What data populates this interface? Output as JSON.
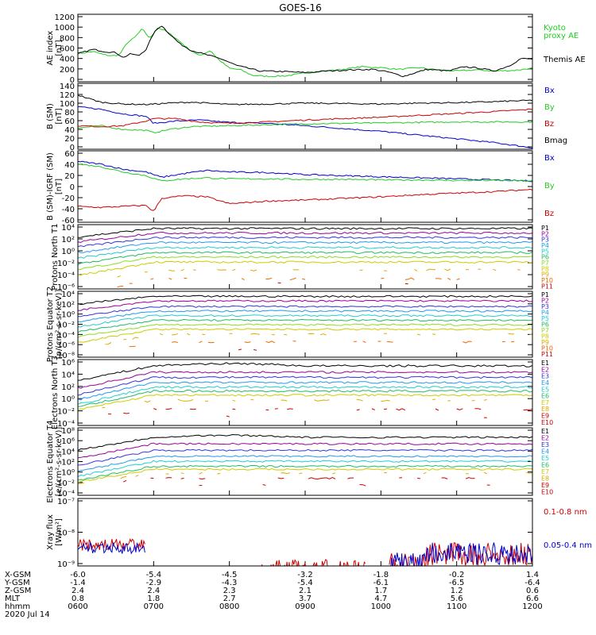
{
  "title": "GOES-16",
  "colors": {
    "black": "#000000",
    "blue": "#0000cc",
    "green": "#22cc22",
    "red": "#cc0000",
    "P": [
      "#000000",
      "#990099",
      "#3333dd",
      "#2299ee",
      "#22cccc",
      "#22bb66",
      "#88dd22",
      "#cccc00",
      "#ddaa00",
      "#ee6600",
      "#cc0000"
    ],
    "E": [
      "#000000",
      "#990099",
      "#3333dd",
      "#2299ee",
      "#22cccc",
      "#22bb66",
      "#cccc00",
      "#ddaa00",
      "#cc0000",
      "#cc0000"
    ]
  },
  "chart_data": [
    {
      "type": "line",
      "ylabel": "AE index [nT]",
      "yticks": [
        "1200",
        "1000",
        "800",
        "600",
        "400",
        "200",
        "0"
      ],
      "ylim": [
        0,
        1250
      ],
      "series": [
        {
          "name": "Kyoto proxy AE",
          "color": "green",
          "x": [
            0,
            0.2,
            0.35,
            0.45,
            0.55,
            0.65,
            0.75,
            0.85,
            0.95,
            1.05,
            1.15,
            1.3,
            1.45,
            1.6,
            1.75,
            1.85,
            2,
            2.15,
            2.3,
            2.5,
            2.75,
            3,
            3.25,
            3.5,
            3.75,
            4,
            4.25,
            4.5,
            4.75,
            5,
            5.25,
            5.5,
            5.75,
            6
          ],
          "y": [
            520,
            560,
            500,
            480,
            500,
            720,
            820,
            980,
            800,
            1000,
            950,
            800,
            620,
            480,
            580,
            420,
            250,
            220,
            120,
            100,
            110,
            160,
            200,
            230,
            280,
            260,
            230,
            260,
            220,
            200,
            220,
            200,
            210,
            250
          ]
        },
        {
          "name": "Themis AE",
          "color": "black",
          "x": [
            0,
            0.2,
            0.35,
            0.5,
            0.6,
            0.7,
            0.8,
            0.9,
            1,
            1.1,
            1.2,
            1.35,
            1.5,
            1.7,
            1.9,
            2.1,
            2.4,
            2.7,
            3,
            3.3,
            3.6,
            3.9,
            4.1,
            4.3,
            4.6,
            4.9,
            5.1,
            5.3,
            5.5,
            5.7,
            5.85,
            6
          ],
          "y": [
            520,
            600,
            560,
            540,
            450,
            520,
            480,
            600,
            900,
            1050,
            900,
            700,
            580,
            500,
            420,
            300,
            200,
            190,
            170,
            200,
            220,
            230,
            180,
            100,
            230,
            200,
            280,
            250,
            200,
            300,
            430,
            420
          ]
        }
      ]
    },
    {
      "type": "line",
      "ylabel": "B (SM) [nT]",
      "yticks": [
        "140",
        "120",
        "100",
        "80",
        "60",
        "40",
        "20",
        "0"
      ],
      "ylim": [
        0,
        140
      ],
      "series": [
        {
          "name": "Bx",
          "color": "blue",
          "x": [
            0,
            0.3,
            0.6,
            0.9,
            1,
            1.3,
            1.6,
            2,
            2.5,
            3,
            3.5,
            4,
            4.5,
            5,
            5.5,
            6
          ],
          "y": [
            90,
            85,
            75,
            70,
            55,
            60,
            62,
            57,
            55,
            50,
            44,
            38,
            30,
            22,
            14,
            3
          ]
        },
        {
          "name": "By",
          "color": "green",
          "x": [
            0,
            0.3,
            0.6,
            0.9,
            1,
            1.2,
            1.5,
            2,
            2.5,
            3,
            3.5,
            4,
            4.5,
            5,
            5.5,
            6
          ],
          "y": [
            45,
            50,
            42,
            40,
            35,
            42,
            48,
            50,
            52,
            54,
            55,
            56,
            57,
            58,
            58,
            58
          ]
        },
        {
          "name": "Bz",
          "color": "red",
          "x": [
            0,
            0.3,
            0.6,
            0.9,
            1,
            1.3,
            1.6,
            2,
            2.5,
            3,
            3.5,
            4,
            4.5,
            5,
            5.5,
            6
          ],
          "y": [
            50,
            48,
            50,
            60,
            65,
            65,
            58,
            55,
            58,
            62,
            65,
            68,
            72,
            76,
            80,
            85
          ]
        },
        {
          "name": "Bmag",
          "color": "black",
          "x": [
            0,
            0.3,
            0.6,
            0.9,
            1.2,
            1.5,
            2,
            2.5,
            3,
            3.5,
            4,
            4.5,
            5,
            5.5,
            6
          ],
          "y": [
            115,
            100,
            96,
            95,
            98,
            100,
            95,
            96,
            98,
            97,
            96,
            98,
            99,
            101,
            104
          ]
        }
      ]
    },
    {
      "type": "line",
      "ylabel": "B (SM)-IGRF (SM) [nT]",
      "yticks": [
        "60",
        "40",
        "20",
        "0",
        "-20",
        "-40",
        "-60"
      ],
      "ylim": [
        -70,
        65
      ],
      "series": [
        {
          "name": "Bx",
          "color": "blue",
          "x": [
            0,
            0.3,
            0.6,
            0.9,
            1.1,
            1.4,
            1.7,
            2,
            2.5,
            3,
            3.5,
            4,
            4.5,
            5,
            5.5,
            6
          ],
          "y": [
            45,
            40,
            30,
            25,
            15,
            22,
            28,
            25,
            24,
            20,
            18,
            16,
            14,
            12,
            10,
            8
          ]
        },
        {
          "name": "By",
          "color": "green",
          "x": [
            0,
            0.3,
            0.6,
            0.9,
            1.1,
            1.4,
            1.7,
            2,
            2.5,
            3,
            3.5,
            4,
            4.5,
            5,
            5.5,
            6
          ],
          "y": [
            40,
            35,
            25,
            18,
            8,
            12,
            14,
            12,
            12,
            11,
            11,
            10,
            10,
            9,
            9,
            8
          ]
        },
        {
          "name": "Bz",
          "color": "red",
          "x": [
            0,
            0.3,
            0.6,
            0.9,
            1,
            1.1,
            1.4,
            1.7,
            2,
            2.5,
            3,
            3.5,
            4,
            4.5,
            5,
            5.5,
            6
          ],
          "y": [
            -40,
            -42,
            -40,
            -38,
            -50,
            -25,
            -20,
            -22,
            -35,
            -30,
            -28,
            -25,
            -22,
            -18,
            -15,
            -12,
            -8
          ]
        }
      ]
    },
    {
      "type": "line",
      "ylabel": "Protons North T1",
      "yticks": [
        "10⁴",
        "10²",
        "10⁰",
        "10⁻²",
        "10⁻⁴",
        "10⁻⁶"
      ],
      "ylim": [
        -7,
        4.5
      ],
      "log": true,
      "channels": [
        "P1",
        "P2",
        "P3",
        "P4",
        "P5",
        "P6",
        "P7",
        "P8",
        "P9",
        "P10",
        "P11"
      ],
      "channel_levels": [
        3.8,
        3.0,
        2.2,
        1.3,
        0.4,
        -0.5,
        -1.3,
        -2.2,
        -3.6,
        -5.2,
        -6
      ],
      "early_dip": [
        1.5,
        1.6,
        1.7,
        1.8,
        1.9,
        2.0,
        2.2,
        2.4,
        2.6,
        3,
        3
      ]
    },
    {
      "type": "line",
      "ylabel": "Protons Equator T2 [p/(cm²-s-sr-keV)]",
      "yticks": [
        "10⁴",
        "10²",
        "10⁰",
        "10⁻²",
        "10⁻⁴",
        "10⁻⁶",
        "10⁻⁸"
      ],
      "ylim": [
        -8.5,
        4.5
      ],
      "log": true,
      "channels": [
        "P1",
        "P2",
        "P3",
        "P4",
        "P5",
        "P6",
        "P7",
        "P8",
        "P9",
        "P10",
        "P11"
      ],
      "channel_levels": [
        3.5,
        2.6,
        1.5,
        0.6,
        -0.3,
        -1.2,
        -2.1,
        -3,
        -4,
        -5.5,
        -7
      ],
      "early_dip": [
        1.5,
        1.8,
        2.0,
        2.1,
        2.2,
        2.3,
        2.4,
        2.6,
        3,
        3,
        3
      ]
    },
    {
      "type": "line",
      "ylabel": "Electrons North T3",
      "yticks": [
        "10⁶",
        "10⁴",
        "10²",
        "10⁰",
        "10⁻²",
        "10⁻⁴"
      ],
      "ylim": [
        -5,
        6.5
      ],
      "log": true,
      "channels": [
        "E1",
        "E2",
        "E3",
        "E4",
        "E5",
        "E6",
        "E7",
        "E8",
        "E9",
        "E10"
      ],
      "channel_levels": [
        5.4,
        4.3,
        3.4,
        2.5,
        1.7,
        1.0,
        0.3,
        -0.6,
        -2.2,
        -3.5
      ],
      "early_dip": [
        2.5,
        2.8,
        3,
        3,
        3,
        2.8,
        2.5,
        2,
        1.5,
        1
      ]
    },
    {
      "type": "line",
      "ylabel": "Electrons Equator T4 [e/(cm²-s-sr-keV)]",
      "yticks": [
        "10⁸",
        "10⁶",
        "10⁴",
        "10²",
        "10⁰",
        "10⁻²",
        "10⁻⁴"
      ],
      "ylim": [
        -5,
        8.5
      ],
      "log": true,
      "channels": [
        "E1",
        "E2",
        "E3",
        "E4",
        "E5",
        "E6",
        "E7",
        "E8",
        "E9",
        "E10"
      ],
      "channel_levels": [
        6.6,
        5.3,
        4.0,
        2.8,
        1.8,
        0.8,
        0.2,
        -0.6,
        -1.6,
        -3
      ],
      "early_dip": [
        2.5,
        2.8,
        3,
        3,
        3,
        2.8,
        2.5,
        2,
        1.5,
        1
      ]
    },
    {
      "type": "line",
      "ylabel": "Xray flux [W/m²]",
      "yticks": [
        "10⁻⁷",
        "10⁻⁸",
        "10⁻⁹"
      ],
      "ylim": [
        -9,
        -7
      ],
      "log": true,
      "series": [
        {
          "name": "0.1-0.8 nm",
          "color": "red"
        },
        {
          "name": "0.05-0.4 nm",
          "color": "blue"
        }
      ]
    }
  ],
  "legends": [
    [
      {
        "text": "Kyoto",
        "color": "green"
      },
      {
        "text": "proxy AE",
        "color": "green"
      },
      {
        "text": "Themis AE",
        "color": "black"
      }
    ],
    [
      {
        "text": "Bx",
        "color": "blue"
      },
      {
        "text": "By",
        "color": "green"
      },
      {
        "text": "Bz",
        "color": "red"
      },
      {
        "text": "Bmag",
        "color": "black"
      }
    ],
    [
      {
        "text": "Bx",
        "color": "blue"
      },
      {
        "text": "By",
        "color": "green"
      },
      {
        "text": "Bz",
        "color": "red"
      }
    ],
    [],
    [],
    [],
    [],
    [
      {
        "text": "0.1-0.8 nm",
        "color": "red"
      },
      {
        "text": "0.05-0.4 nm",
        "color": "blue"
      }
    ]
  ],
  "xaxis": {
    "row_labels": [
      "X-GSM",
      "Y-GSM",
      "Z-GSM",
      "MLT",
      "hhmm"
    ],
    "date": "2020 Jul 14",
    "columns": [
      [
        "-6.0",
        "-1.4",
        "2.4",
        "0.8",
        "0600"
      ],
      [
        "-5.4",
        "-2.9",
        "2.4",
        "1.8",
        "0700"
      ],
      [
        "-4.5",
        "-4.3",
        "2.3",
        "2.7",
        "0800"
      ],
      [
        "-3.2",
        "-5.4",
        "2.1",
        "3.7",
        "0900"
      ],
      [
        "-1.8",
        "-6.1",
        "1.7",
        "4.7",
        "1000"
      ],
      [
        "-0.2",
        "-6.5",
        "1.2",
        "5.6",
        "1100"
      ],
      [
        "1.4",
        "-6.4",
        "0.6",
        "6.6",
        "1200"
      ]
    ]
  }
}
